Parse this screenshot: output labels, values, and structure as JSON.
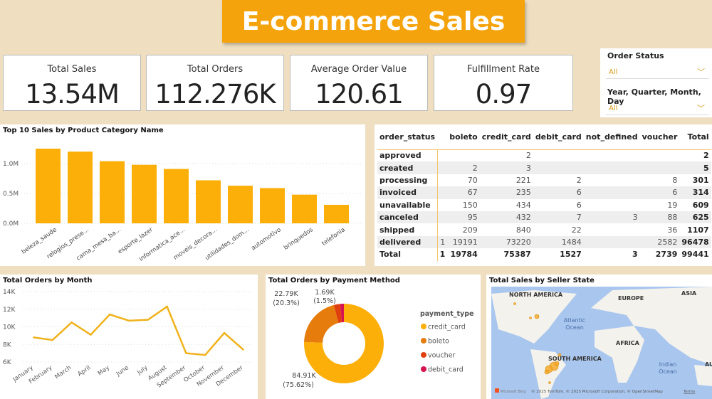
{
  "title": "E-commerce Sales",
  "kpis": [
    {
      "label": "Total Sales",
      "value": "13.54M"
    },
    {
      "label": "Total Orders",
      "value": "112.276K"
    },
    {
      "label": "Average Order Value",
      "value": "120.61"
    },
    {
      "label": "Fulfillment Rate",
      "value": "0.97"
    }
  ],
  "slicers": [
    {
      "label": "Order Status",
      "value": "All"
    },
    {
      "label": "Year, Quarter, Month, Day",
      "value": "All"
    }
  ],
  "matrix": {
    "columns": [
      "order_status",
      "",
      "boleto",
      "credit_card",
      "debit_card",
      "not_defined",
      "voucher",
      "Total"
    ],
    "sort_indicator": "▲",
    "rows": [
      [
        "approved",
        "",
        "",
        "2",
        "",
        "",
        "",
        "2"
      ],
      [
        "created",
        "",
        "2",
        "3",
        "",
        "",
        "",
        "5"
      ],
      [
        "processing",
        "",
        "70",
        "221",
        "2",
        "",
        "8",
        "301"
      ],
      [
        "invoiced",
        "",
        "67",
        "235",
        "6",
        "",
        "6",
        "314"
      ],
      [
        "unavailable",
        "",
        "150",
        "434",
        "6",
        "",
        "19",
        "609"
      ],
      [
        "canceled",
        "",
        "95",
        "432",
        "7",
        "3",
        "88",
        "625"
      ],
      [
        "shipped",
        "",
        "209",
        "840",
        "22",
        "",
        "36",
        "1107"
      ],
      [
        "delivered",
        "1",
        "19191",
        "73220",
        "1484",
        "",
        "2582",
        "96478"
      ]
    ],
    "total": [
      "Total",
      "1",
      "19784",
      "75387",
      "1527",
      "3",
      "2739",
      "99441"
    ]
  },
  "chart_data": [
    {
      "type": "bar",
      "title": "Top 10 Sales by Product Category Name",
      "color": "#fcaf08",
      "categories": [
        "beleza_saude",
        "relogios_prese...",
        "cama_mesa_ba...",
        "esporte_lazer",
        "informatica_ace...",
        "moveis_decora...",
        "utilidades_dom...",
        "automotivo",
        "brinquedos",
        "telefonia"
      ],
      "values": [
        1.25,
        1.2,
        1.04,
        0.98,
        0.91,
        0.72,
        0.63,
        0.59,
        0.48,
        0.31
      ],
      "unit": "M",
      "yticks": [
        "0.0M",
        "0.5M",
        "1.0M"
      ],
      "ylim": [
        0,
        1.4
      ],
      "grid": true
    },
    {
      "type": "line",
      "title": "Total Orders by Month",
      "color": "#f0b21b",
      "categories": [
        "January",
        "February",
        "March",
        "April",
        "May",
        "June",
        "July",
        "August",
        "September",
        "October",
        "November",
        "December"
      ],
      "values": [
        8800,
        8500,
        10500,
        9100,
        11400,
        10700,
        10800,
        12300,
        7000,
        6800,
        9300,
        7400
      ],
      "yticks": [
        "6K",
        "8K",
        "10K",
        "12K",
        "14K"
      ],
      "ylim": [
        6000,
        14000
      ],
      "grid": true
    },
    {
      "type": "pie",
      "title": "Total Orders by Payment Method",
      "legend_title": "payment_type",
      "legend": "right",
      "slices": [
        {
          "name": "credit_card",
          "value": 84.91,
          "label": "84.91K",
          "pct": "(75.62%)",
          "color": "#fcaf08"
        },
        {
          "name": "boleto",
          "value": 22.79,
          "label": "22.79K",
          "pct": "(20.3%)",
          "color": "#e57c0b"
        },
        {
          "name": "voucher",
          "value": 2.89,
          "label": "",
          "pct": "",
          "color": "#e0400f"
        },
        {
          "name": "debit_card",
          "value": 1.69,
          "label": "1.69K",
          "pct": "(1.5%)",
          "color": "#d6144f"
        }
      ]
    }
  ],
  "map": {
    "title": "Total Sales by Seller State",
    "labels": {
      "na": "NORTH AMERICA",
      "eu": "EUROPE",
      "as": "ASIA",
      "atl": "Atlantic",
      "atl2": "Ocean",
      "af": "AFRICA",
      "sa": "SOUTH AMERICA",
      "io": "Indian",
      "io2": "Ocean",
      "au": "AU"
    },
    "attribution": "© 2025 TomTom, © 2025 Microsoft Corporation, © OpenStreetMap",
    "terms": "Terms",
    "bing": "Microsoft Bing"
  }
}
